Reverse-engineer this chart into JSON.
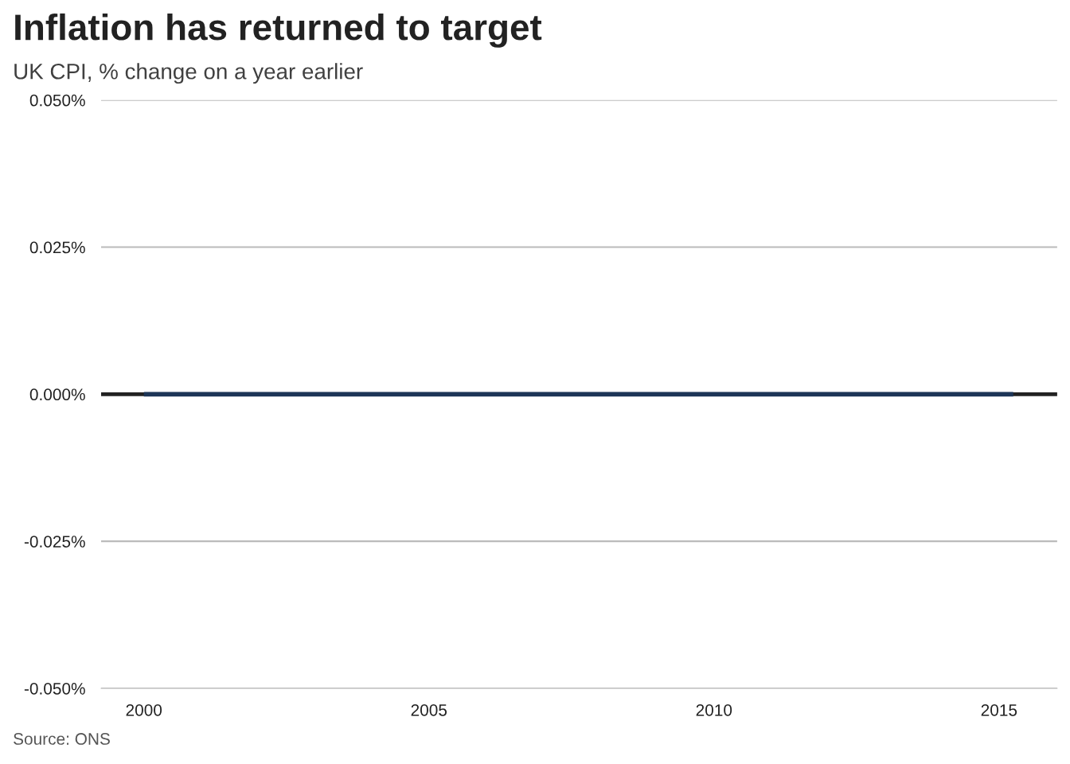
{
  "chart_data": {
    "type": "line",
    "title": "Inflation has returned to target",
    "subtitle": "UK CPI, % change on a year earlier",
    "annotations": [
      "Source: ONS"
    ],
    "x": [
      2000,
      2015.25
    ],
    "series": [
      {
        "color": "#1d3557",
        "values": [
          0,
          0
        ]
      }
    ],
    "xlim": [
      1999.25,
      2016.02
    ],
    "xticks": [
      2000,
      2005,
      2010,
      2015
    ],
    "ylim": [
      -0.05,
      0.05
    ],
    "yticks": [
      {
        "value": -0.05,
        "label": "-0.050%"
      },
      {
        "value": -0.025,
        "label": "-0.025%"
      },
      {
        "value": 0,
        "label": "0.000%"
      },
      {
        "value": 0.025,
        "label": "0.025%"
      },
      {
        "value": 0.05,
        "label": "0.050%"
      }
    ],
    "ref_lines": [
      {
        "axis": "y",
        "value": 0,
        "color": "#222222"
      }
    ],
    "grid": "y",
    "legend": false
  }
}
